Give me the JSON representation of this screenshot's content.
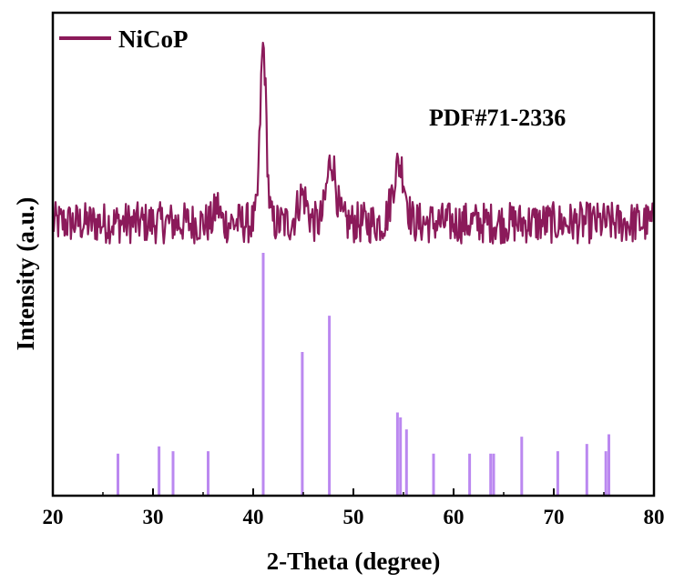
{
  "chart_data": {
    "type": "line",
    "xlabel": "2-Theta (degree)",
    "ylabel": "Intensity (a.u.)",
    "xlim": [
      20,
      80
    ],
    "xticks": [
      20,
      30,
      40,
      50,
      60,
      70,
      80
    ],
    "yticks_shown": false,
    "grid": false,
    "legend": {
      "placement": "top-left",
      "entries": [
        "NiCoP"
      ]
    },
    "annotations": [
      {
        "text": "PDF#71-2336"
      }
    ],
    "series": [
      {
        "name": "NiCoP",
        "kind": "xrd-pattern",
        "color": "#8B1A5A",
        "baseline": 1.0,
        "noise_amplitude": 0.35,
        "peaks": [
          {
            "x": 36.4,
            "height": 0.55,
            "width": 0.25
          },
          {
            "x": 41.0,
            "height": 5.6,
            "width": 0.3
          },
          {
            "x": 44.9,
            "height": 0.9,
            "width": 0.45
          },
          {
            "x": 47.8,
            "height": 2.0,
            "width": 0.45
          },
          {
            "x": 54.4,
            "height": 1.6,
            "width": 0.55
          },
          {
            "x": 55.0,
            "height": 0.6,
            "width": 0.4
          }
        ]
      },
      {
        "name": "",
        "kind": "reference-sticks",
        "color": "#BB88F0",
        "x": [
          26.5,
          30.6,
          32.0,
          35.5,
          41.0,
          44.9,
          47.6,
          54.4,
          54.7,
          55.3,
          58.0,
          61.6,
          63.7,
          64.0,
          66.8,
          70.4,
          73.3,
          75.2,
          75.5
        ],
        "values": [
          17,
          20,
          18,
          18,
          100,
          59,
          74,
          34,
          32,
          27,
          17,
          17,
          17,
          17,
          24,
          18,
          21,
          18,
          25
        ]
      }
    ]
  }
}
